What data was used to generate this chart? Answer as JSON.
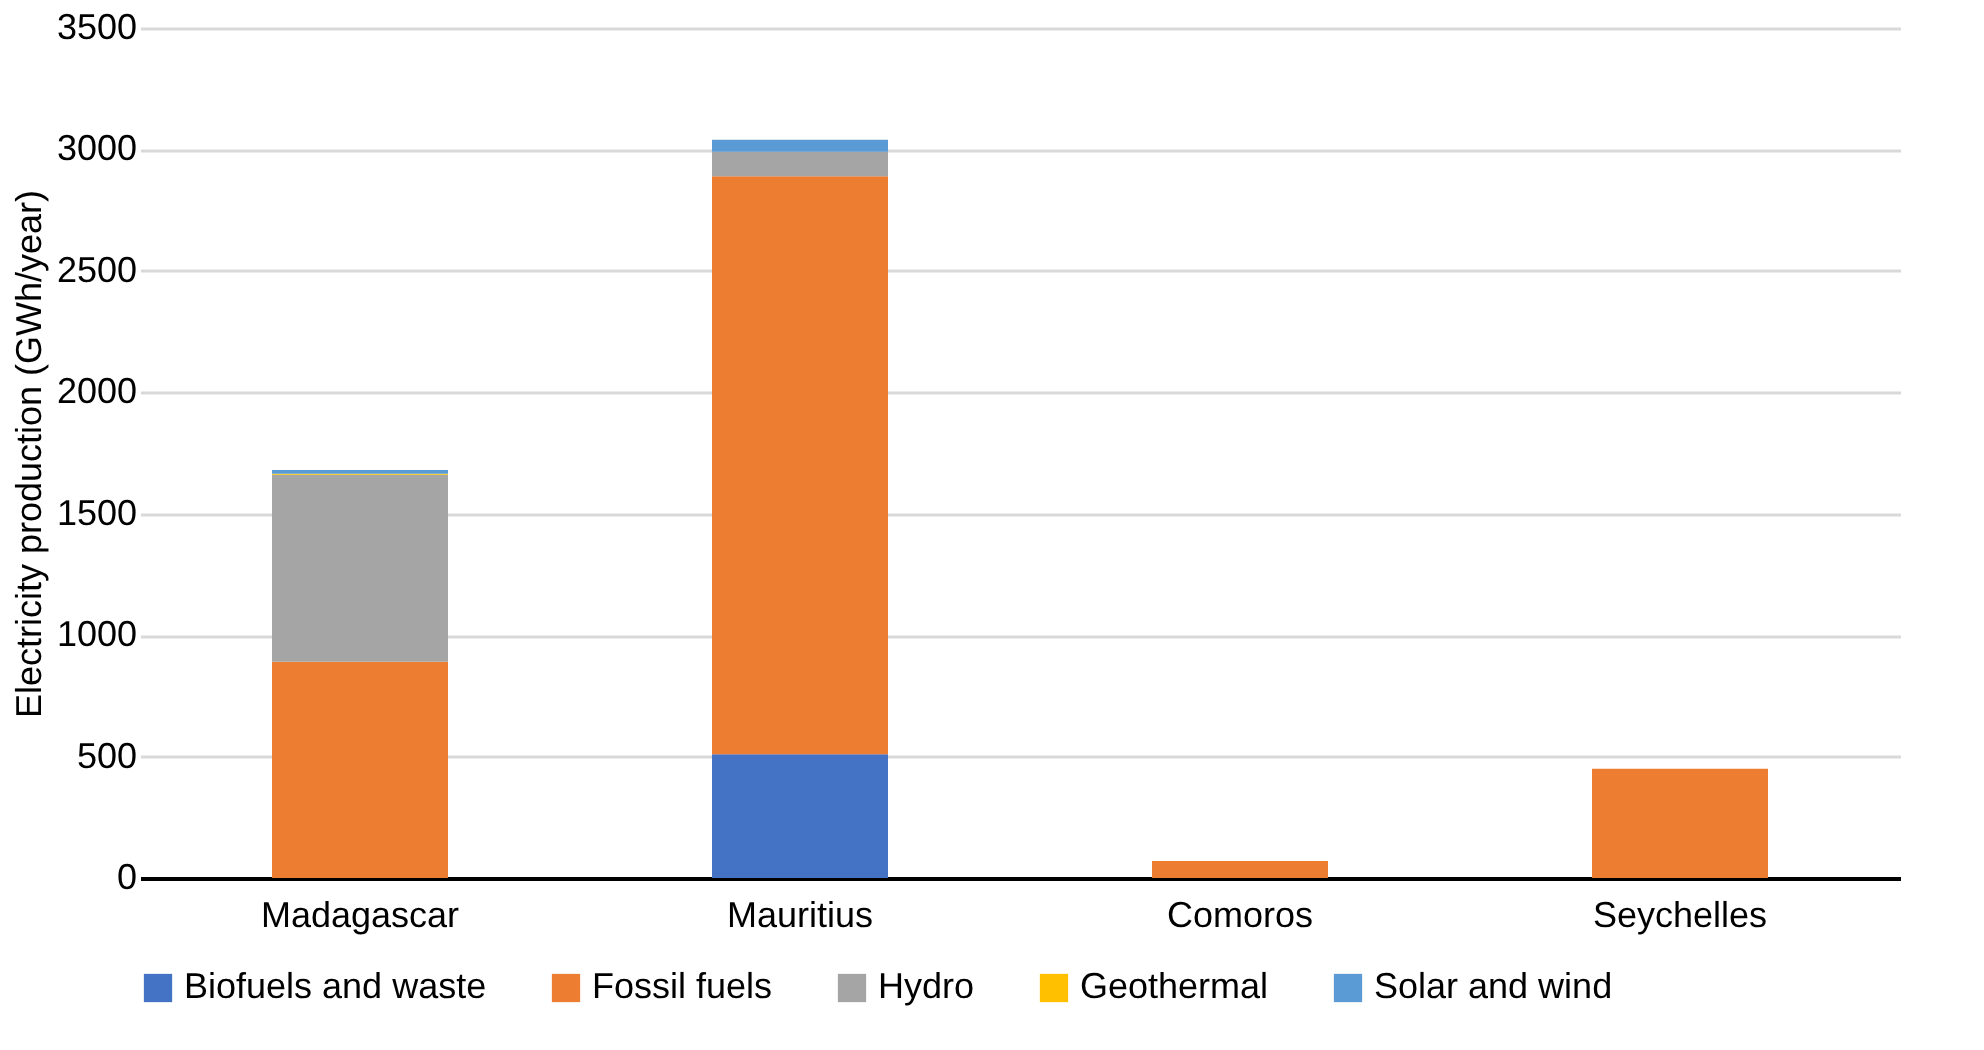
{
  "chart_data": {
    "type": "bar",
    "stacked": true,
    "ylabel": "Electricity production (GWh/year)",
    "categories": [
      "Madagascar",
      "Mauritius",
      "Comoros",
      "Seychelles"
    ],
    "series": [
      {
        "name": "Biofuels and waste",
        "color": "#4472c4",
        "values": [
          0,
          510,
          0,
          0
        ]
      },
      {
        "name": "Fossil fuels",
        "color": "#ed7d31",
        "values": [
          890,
          2380,
          70,
          450
        ]
      },
      {
        "name": "Hydro",
        "color": "#a5a5a5",
        "values": [
          770,
          100,
          0,
          0
        ]
      },
      {
        "name": "Geothermal",
        "color": "#ffc000",
        "values": [
          5,
          0,
          0,
          0
        ]
      },
      {
        "name": "Solar and wind",
        "color": "#5b9bd5",
        "values": [
          15,
          50,
          0,
          0
        ]
      }
    ],
    "ylim": [
      0,
      3500
    ],
    "yticks": [
      0,
      500,
      1000,
      1500,
      2000,
      2500,
      3000,
      3500
    ],
    "grid": "y",
    "legend": "bottom"
  }
}
